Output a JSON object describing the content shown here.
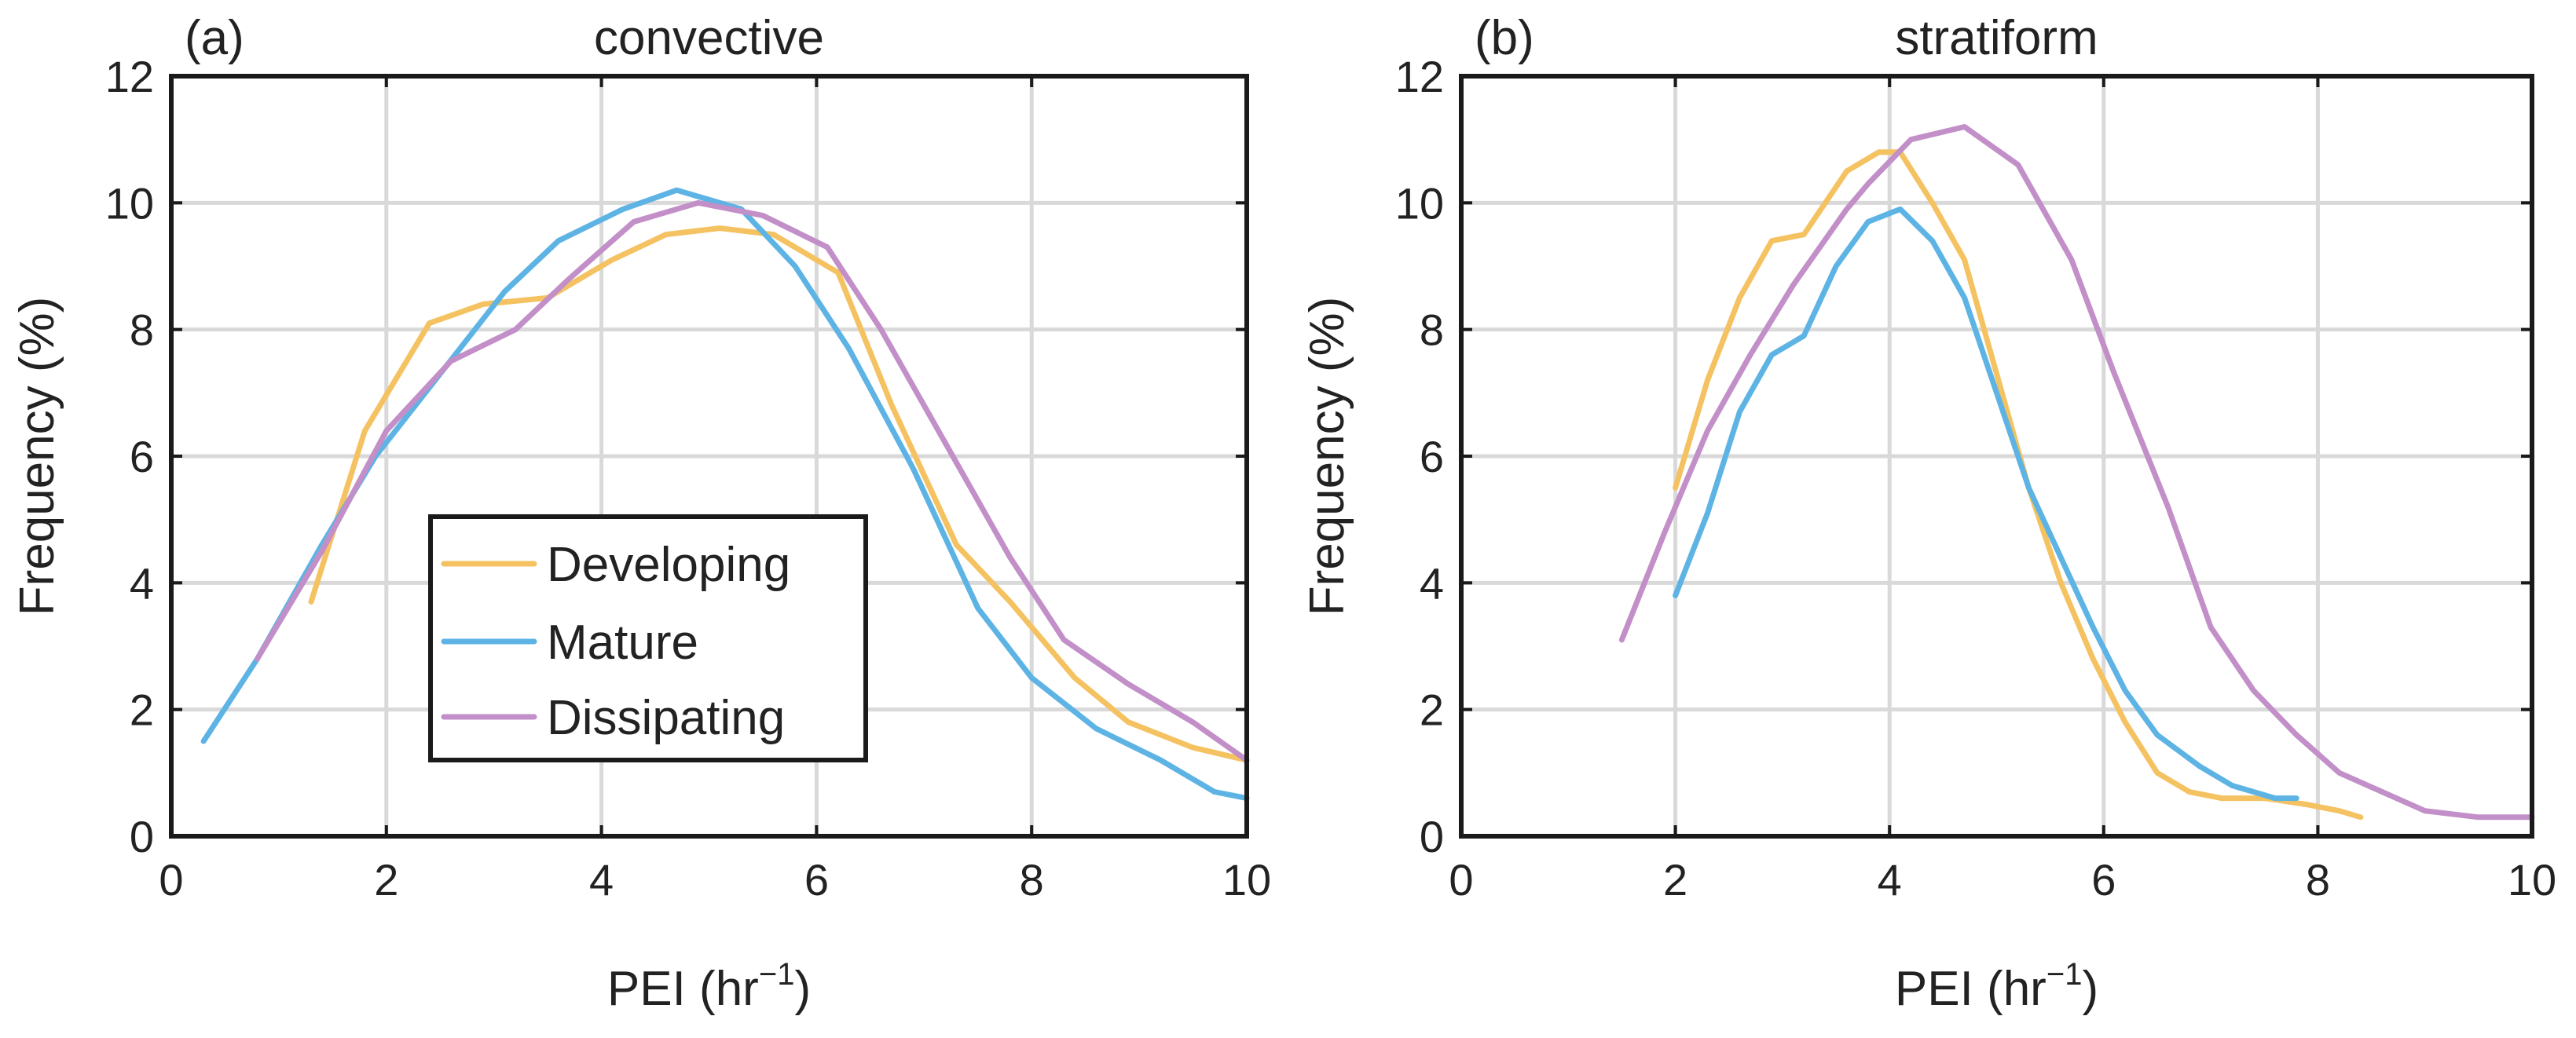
{
  "colors": {
    "developing": "#f5c262",
    "mature": "#5db4e4",
    "dissipating": "#c28fc8"
  },
  "legend": {
    "items": [
      {
        "key": "developing",
        "label": "Developing"
      },
      {
        "key": "mature",
        "label": "Mature"
      },
      {
        "key": "dissipating",
        "label": "Dissipating"
      }
    ]
  },
  "chart_data": [
    {
      "type": "line",
      "panel_tag": "(a)",
      "title": "convective",
      "xlabel": "PEI (hr",
      "xlabel_superscript": "−1",
      "xlabel_close": ")",
      "ylabel": "Frequency (%)",
      "xlim": [
        0,
        10
      ],
      "ylim": [
        0,
        12
      ],
      "xticks": [
        "0",
        "2",
        "4",
        "6",
        "8",
        "10"
      ],
      "yticks": [
        "0",
        "2",
        "4",
        "6",
        "8",
        "10",
        "12"
      ],
      "grid": true,
      "legend_position": "center-left",
      "series": [
        {
          "key": "developing",
          "name": "Developing",
          "x": [
            1.3,
            1.8,
            2.4,
            2.9,
            3.5,
            4.1,
            4.6,
            5.1,
            5.6,
            6.2,
            6.7,
            7.3,
            7.8,
            8.4,
            8.9,
            9.5,
            10.0
          ],
          "y": [
            3.7,
            6.4,
            8.1,
            8.4,
            8.5,
            9.1,
            9.5,
            9.6,
            9.5,
            8.9,
            6.8,
            4.6,
            3.7,
            2.5,
            1.8,
            1.4,
            1.2
          ]
        },
        {
          "key": "mature",
          "name": "Mature",
          "x": [
            0.3,
            0.8,
            1.4,
            1.9,
            2.5,
            3.1,
            3.6,
            4.2,
            4.7,
            5.3,
            5.8,
            6.3,
            6.9,
            7.5,
            8.0,
            8.6,
            9.2,
            9.7,
            10.0
          ],
          "y": [
            1.5,
            2.8,
            4.6,
            6.0,
            7.3,
            8.6,
            9.4,
            9.9,
            10.2,
            9.9,
            9.0,
            7.7,
            5.8,
            3.6,
            2.5,
            1.7,
            1.2,
            0.7,
            0.6
          ]
        },
        {
          "key": "dissipating",
          "name": "Dissipating",
          "x": [
            0.8,
            1.4,
            2.0,
            2.6,
            3.2,
            3.7,
            4.3,
            4.9,
            5.5,
            6.1,
            6.6,
            7.2,
            7.8,
            8.3,
            8.9,
            9.5,
            10.0
          ],
          "y": [
            2.8,
            4.5,
            6.4,
            7.5,
            8.0,
            8.8,
            9.7,
            10.0,
            9.8,
            9.3,
            8.0,
            6.2,
            4.4,
            3.1,
            2.4,
            1.8,
            1.2
          ]
        }
      ]
    },
    {
      "type": "line",
      "panel_tag": "(b)",
      "title": "stratiform",
      "xlabel": "PEI (hr",
      "xlabel_superscript": "−1",
      "xlabel_close": ")",
      "ylabel": "Frequency (%)",
      "xlim": [
        0,
        10
      ],
      "ylim": [
        0,
        12
      ],
      "xticks": [
        "0",
        "2",
        "4",
        "6",
        "8",
        "10"
      ],
      "yticks": [
        "0",
        "2",
        "4",
        "6",
        "8",
        "10",
        "12"
      ],
      "grid": true,
      "legend_position": "none",
      "series": [
        {
          "key": "developing",
          "name": "Developing",
          "x": [
            2.0,
            2.3,
            2.6,
            2.9,
            3.2,
            3.6,
            3.9,
            4.1,
            4.4,
            4.7,
            5.0,
            5.3,
            5.6,
            5.9,
            6.2,
            6.5,
            6.8,
            7.1,
            7.5,
            7.9,
            8.2,
            8.4
          ],
          "y": [
            5.5,
            7.2,
            8.5,
            9.4,
            9.5,
            10.5,
            10.8,
            10.8,
            10.0,
            9.1,
            7.3,
            5.5,
            4.0,
            2.8,
            1.8,
            1.0,
            0.7,
            0.6,
            0.6,
            0.5,
            0.4,
            0.3
          ]
        },
        {
          "key": "mature",
          "name": "Mature",
          "x": [
            2.0,
            2.3,
            2.6,
            2.9,
            3.2,
            3.5,
            3.8,
            4.1,
            4.4,
            4.7,
            5.0,
            5.3,
            5.6,
            5.9,
            6.2,
            6.5,
            6.9,
            7.2,
            7.6,
            7.8
          ],
          "y": [
            3.8,
            5.1,
            6.7,
            7.6,
            7.9,
            9.0,
            9.7,
            9.9,
            9.4,
            8.5,
            7.0,
            5.5,
            4.4,
            3.3,
            2.3,
            1.6,
            1.1,
            0.8,
            0.6,
            0.6
          ]
        },
        {
          "key": "dissipating",
          "name": "Dissipating",
          "x": [
            1.5,
            1.9,
            2.3,
            2.7,
            3.1,
            3.6,
            3.8,
            4.2,
            4.7,
            5.2,
            5.7,
            6.1,
            6.6,
            7.0,
            7.4,
            7.8,
            8.2,
            8.6,
            9.0,
            9.5,
            10.0
          ],
          "y": [
            3.1,
            4.8,
            6.4,
            7.6,
            8.7,
            9.9,
            10.3,
            11.0,
            11.2,
            10.6,
            9.1,
            7.3,
            5.2,
            3.3,
            2.3,
            1.6,
            1.0,
            0.7,
            0.4,
            0.3,
            0.3
          ]
        }
      ]
    }
  ]
}
